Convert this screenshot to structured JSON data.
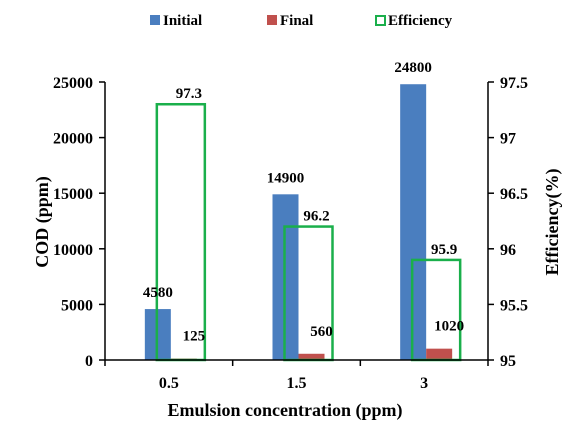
{
  "chart_data": {
    "type": "bar",
    "categories": [
      "0.5",
      "1.5",
      "3"
    ],
    "series": [
      {
        "name": "Initial",
        "axis": "left",
        "kind": "bar",
        "color": "#4a7ebf",
        "values": [
          4580,
          14900,
          24800
        ],
        "labels": [
          "4580",
          "14900",
          "24800"
        ]
      },
      {
        "name": "Final",
        "axis": "left",
        "kind": "bar",
        "color": "#c0504d",
        "values": [
          125,
          560,
          1020
        ],
        "labels": [
          "125",
          "560",
          "1020"
        ]
      },
      {
        "name": "Efficiency",
        "axis": "right",
        "kind": "bar-outline",
        "color": "#1aaf4b",
        "values": [
          97.3,
          96.2,
          95.9
        ],
        "labels": [
          "97.3",
          "96.2",
          "95.9"
        ]
      }
    ],
    "xlabel": "Emulsion concentration (ppm)",
    "ylabel": "COD (ppm)",
    "y2label": "Efficiency(%)",
    "ylim": [
      0,
      25000
    ],
    "y2lim": [
      95,
      97.5
    ],
    "yticks": [
      "0",
      "5000",
      "10000",
      "15000",
      "20000",
      "25000"
    ],
    "y2ticks": [
      "95",
      "95.5",
      "96",
      "96.5",
      "97",
      "97.5"
    ],
    "legend_position": "top",
    "grid": false
  }
}
